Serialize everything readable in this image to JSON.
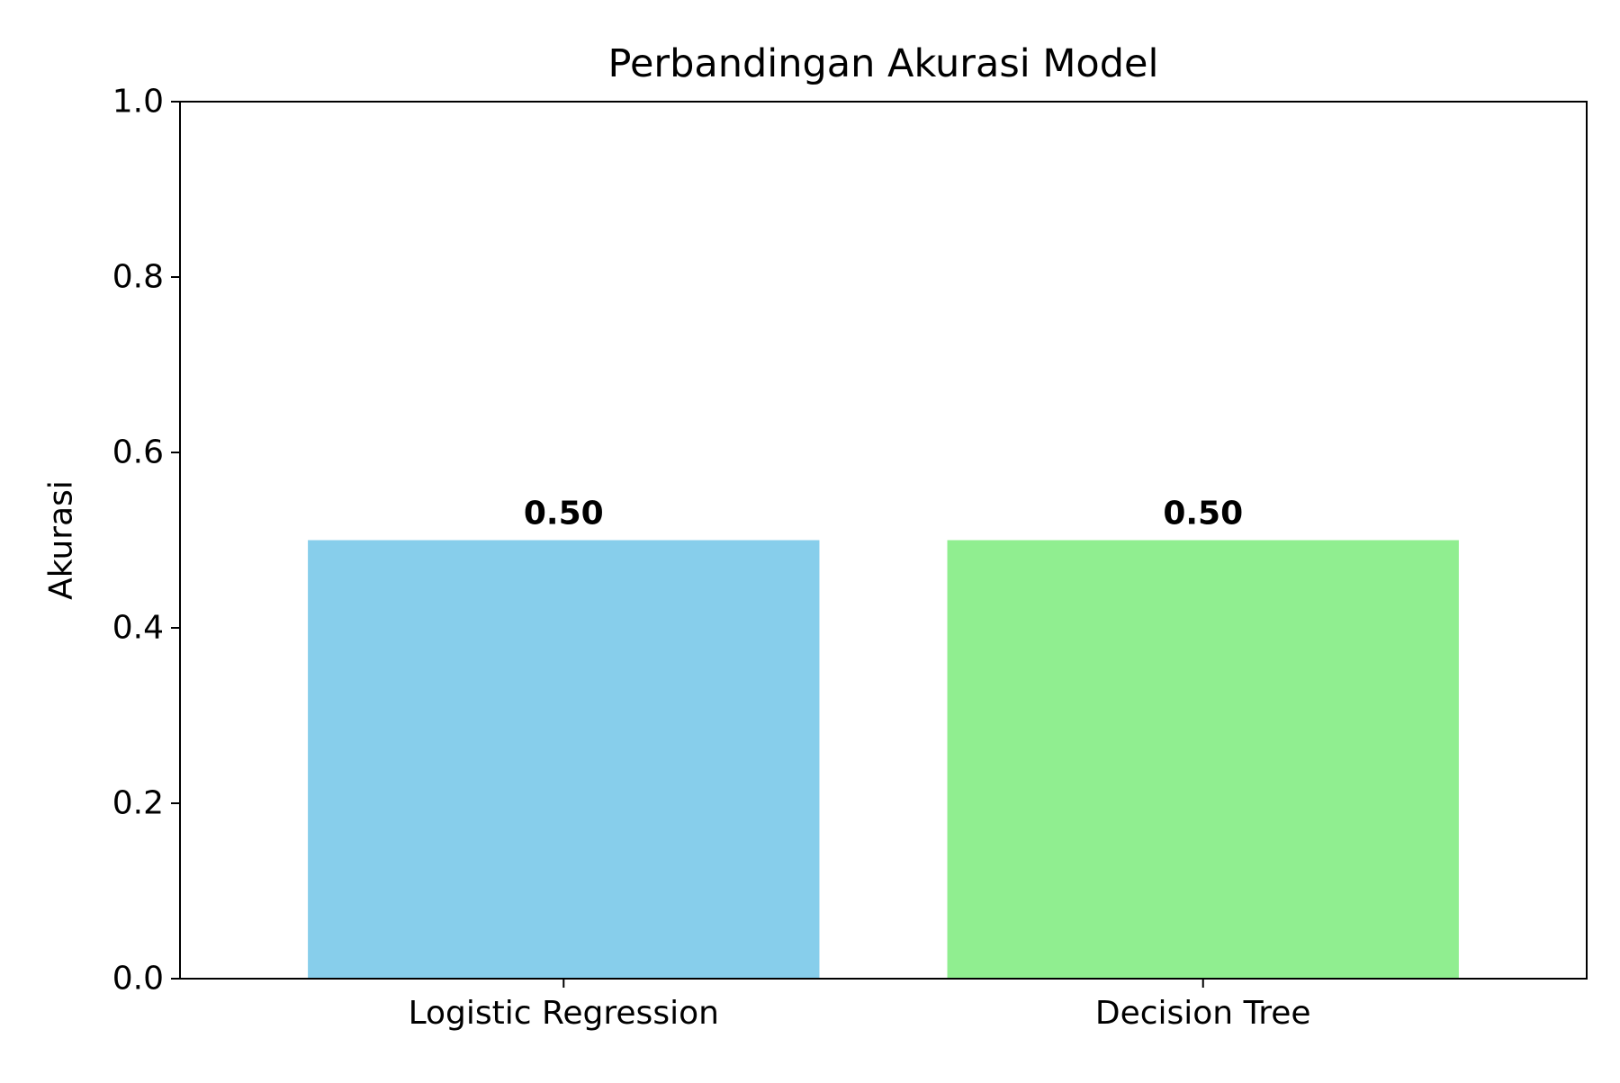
{
  "chart_data": {
    "type": "bar",
    "title": "Perbandingan Akurasi Model",
    "xlabel": "",
    "ylabel": "Akurasi",
    "categories": [
      "Logistic Regression",
      "Decision Tree"
    ],
    "values": [
      0.5,
      0.5
    ],
    "data_labels": [
      "0.50",
      "0.50"
    ],
    "colors": [
      "#87CEEB",
      "#90EE90"
    ],
    "ylim": [
      0,
      1.0
    ],
    "yticks": [
      0.0,
      0.2,
      0.4,
      0.6,
      0.8,
      1.0
    ],
    "ytick_labels": [
      "0.0",
      "0.2",
      "0.4",
      "0.6",
      "0.8",
      "1.0"
    ],
    "grid": false,
    "legend": "none"
  }
}
